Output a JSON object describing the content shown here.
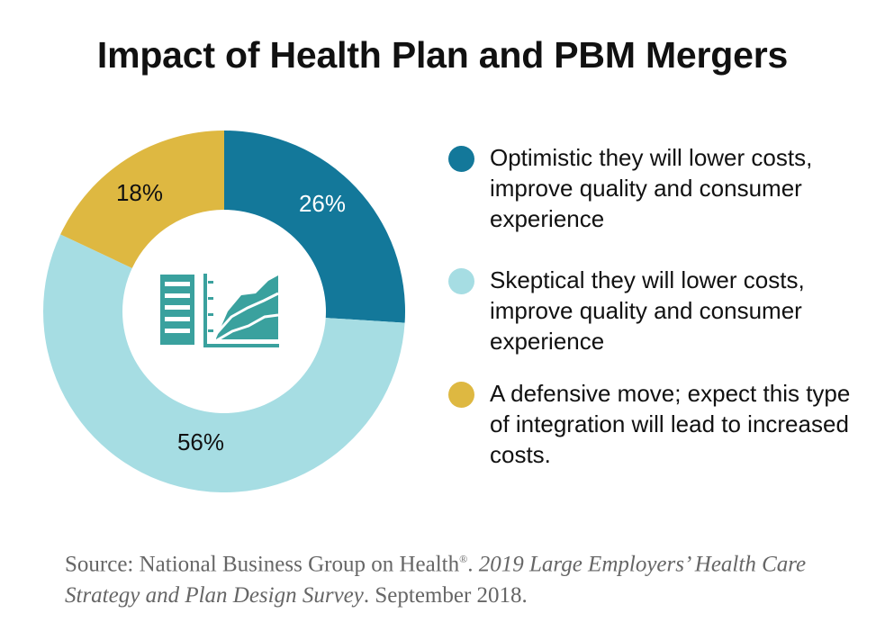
{
  "colors": {
    "optimistic": "#13789a",
    "skeptical": "#a6dde3",
    "defensive": "#deb841",
    "icon": "#3aa19e"
  },
  "icon": "bar-and-area-chart-icon",
  "chart_data": {
    "type": "pie",
    "title": "Impact of Health Plan and PBM Mergers",
    "categories": [
      "Optimistic they will lower costs, improve quality and consumer experience",
      "Skeptical they will lower costs, improve quality and consumer experience",
      "A defensive move; expect this type of integration will lead to increased costs."
    ],
    "values": [
      26,
      56,
      18
    ],
    "labels": [
      "26%",
      "56%",
      "18%"
    ],
    "legend_position": "right"
  },
  "source": {
    "prefix": "Source: National Business Group on Health",
    "mark": "®",
    "sep": ". ",
    "publication": "2019 Large Employers’ Health Care Strategy and Plan Design Survey",
    "suffix": ". September 2018."
  }
}
